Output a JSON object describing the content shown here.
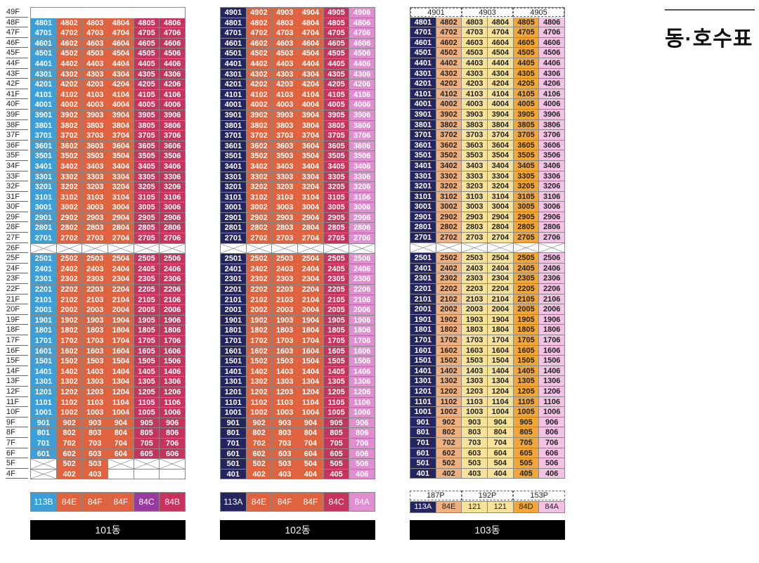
{
  "page_title": "동·호수표",
  "colors": {
    "blue": "#3d9fd8",
    "orange": "#e0633f",
    "crimson": "#c8335e",
    "purple": "#9a3aa0",
    "navy": "#26245f",
    "pink": "#e08ed0",
    "light_orange": "#f0b07e",
    "yellow": "#f7e29a",
    "gold": "#f1a636",
    "pale_pink": "#f5c2e6"
  },
  "floors": [
    "49F",
    "48F",
    "47F",
    "46F",
    "45F",
    "44F",
    "43F",
    "42F",
    "41F",
    "40F",
    "39F",
    "38F",
    "37F",
    "36F",
    "35F",
    "34F",
    "33F",
    "32F",
    "31F",
    "30F",
    "29F",
    "28F",
    "27F",
    "26F",
    "25F",
    "24F",
    "23F",
    "22F",
    "21F",
    "20F",
    "19F",
    "18F",
    "17F",
    "16F",
    "15F",
    "14F",
    "13F",
    "12F",
    "11F",
    "10F",
    "9F",
    "8F",
    "7F",
    "6F",
    "5F",
    "4F"
  ],
  "buildings": [
    {
      "name": "101동",
      "legend": [
        "113B",
        "84E",
        "84F",
        "84F",
        "84C",
        "84B"
      ],
      "legend_colors": [
        "blue",
        "orange",
        "orange",
        "orange",
        "purple",
        "crimson"
      ],
      "col_colors": [
        "blue",
        "orange",
        "orange",
        "orange",
        "crimson",
        "crimson"
      ]
    },
    {
      "name": "102동",
      "legend": [
        "113A",
        "84E",
        "84F",
        "84F",
        "84C",
        "84A"
      ],
      "legend_colors": [
        "navy",
        "orange",
        "orange",
        "orange",
        "crimson",
        "pink"
      ],
      "col_colors": [
        "navy",
        "orange",
        "orange",
        "orange",
        "crimson",
        "pink"
      ]
    },
    {
      "name": "103동",
      "top_units": [
        "4901",
        "4903",
        "4905"
      ],
      "area_labels": [
        "187P",
        "192P",
        "153P"
      ],
      "legend": [
        "113A",
        "84E",
        "121",
        "121",
        "84D",
        "84A"
      ],
      "legend_colors": [
        "navy",
        "light_orange",
        "yellow",
        "yellow",
        "gold",
        "pale_pink"
      ],
      "col_colors": [
        "navy",
        "light_orange",
        "yellow",
        "yellow",
        "gold",
        "pale_pink"
      ]
    }
  ]
}
